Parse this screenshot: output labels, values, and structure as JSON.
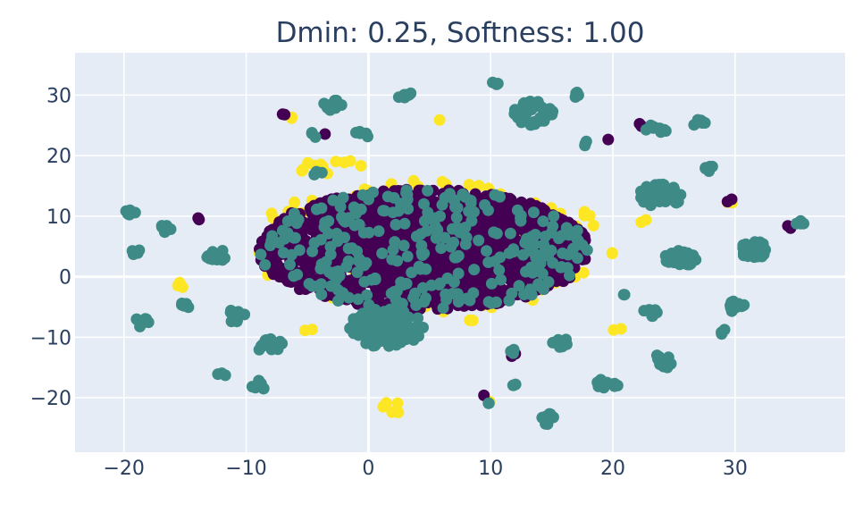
{
  "chart_data": {
    "type": "scatter",
    "title": "Dmin: 0.25, Softness: 1.00",
    "xlabel": "",
    "ylabel": "",
    "xlim": [
      -24,
      39
    ],
    "ylim": [
      -29,
      37
    ],
    "xticks": [
      -20,
      -10,
      0,
      10,
      20,
      30
    ],
    "yticks": [
      -20,
      -10,
      0,
      10,
      20,
      30
    ],
    "xtick_labels": [
      "−20",
      "−10",
      "0",
      "10",
      "20",
      "30"
    ],
    "ytick_labels": [
      "−20",
      "−10",
      "0",
      "10",
      "20",
      "30"
    ],
    "grid": true,
    "legend": "none",
    "background": "#e5ecf6",
    "colors": {
      "class_a": "#fde725",
      "class_b": "#440154",
      "class_c": "#3e8a87"
    },
    "series": [
      {
        "color": "#fde725",
        "blobs": [
          {
            "cx": 5,
            "cy": 5,
            "rx": 15,
            "ry": 11,
            "n": 140
          },
          {
            "cx": -3,
            "cy": 18,
            "rx": 2.6,
            "ry": 1.6,
            "n": 12
          },
          {
            "cx": 2,
            "cy": -21.5,
            "rx": 1.2,
            "ry": 1.0,
            "n": 5
          },
          {
            "cx": -15.5,
            "cy": -1.5,
            "rx": 0.6,
            "ry": 0.6,
            "n": 3
          },
          {
            "cx": 20.5,
            "cy": -9,
            "rx": 0.5,
            "ry": 0.5,
            "n": 2
          },
          {
            "cx": 8.5,
            "cy": -7,
            "rx": 0.5,
            "ry": 0.6,
            "n": 2
          },
          {
            "cx": 22.5,
            "cy": 9,
            "rx": 0.6,
            "ry": 0.6,
            "n": 2
          },
          {
            "cx": 29.5,
            "cy": 12.5,
            "rx": 0.5,
            "ry": 0.5,
            "n": 2
          },
          {
            "cx": -6.5,
            "cy": 26.5,
            "rx": 0.6,
            "ry": 0.4,
            "n": 2
          },
          {
            "cx": 10,
            "cy": -21,
            "rx": 0.4,
            "ry": 0.4,
            "n": 2
          },
          {
            "cx": 6,
            "cy": 26,
            "rx": 0.4,
            "ry": 0.4,
            "n": 1
          },
          {
            "cx": -5,
            "cy": -9,
            "rx": 0.5,
            "ry": 0.5,
            "n": 2
          },
          {
            "cx": 20,
            "cy": 4,
            "rx": 0.6,
            "ry": 0.6,
            "n": 2
          }
        ]
      },
      {
        "color": "#440154",
        "blobs": [
          {
            "cx": 4.5,
            "cy": 4.5,
            "rx": 13.5,
            "ry": 10,
            "n": 1300
          },
          {
            "cx": 4,
            "cy": 5,
            "rx": 8,
            "ry": 6,
            "n": 350
          },
          {
            "cx": -7,
            "cy": 26.5,
            "rx": 0.4,
            "ry": 0.4,
            "n": 2
          },
          {
            "cx": 22.5,
            "cy": 25,
            "rx": 0.7,
            "ry": 0.5,
            "n": 3
          },
          {
            "cx": 29.5,
            "cy": 12.5,
            "rx": 0.4,
            "ry": 0.4,
            "n": 2
          },
          {
            "cx": 34.5,
            "cy": 8.5,
            "rx": 0.5,
            "ry": 0.5,
            "n": 2
          },
          {
            "cx": 9.5,
            "cy": -19.5,
            "rx": 0.3,
            "ry": 0.3,
            "n": 1
          },
          {
            "cx": 19.5,
            "cy": 22.5,
            "rx": 0.3,
            "ry": 0.3,
            "n": 1
          },
          {
            "cx": -14,
            "cy": 9.5,
            "rx": 0.4,
            "ry": 0.3,
            "n": 2
          },
          {
            "cx": 12,
            "cy": -13,
            "rx": 0.4,
            "ry": 0.4,
            "n": 2
          },
          {
            "cx": -3.5,
            "cy": 23.5,
            "rx": 0.3,
            "ry": 0.3,
            "n": 1
          }
        ]
      },
      {
        "color": "#3e8a87",
        "blobs": [
          {
            "cx": 1.5,
            "cy": -8.5,
            "rx": 3.2,
            "ry": 3.2,
            "n": 110
          },
          {
            "cx": 4.5,
            "cy": 4.5,
            "rx": 13.5,
            "ry": 10,
            "n": 280
          },
          {
            "cx": 13.5,
            "cy": 27,
            "rx": 1.6,
            "ry": 2.0,
            "n": 40
          },
          {
            "cx": 24,
            "cy": 13.5,
            "rx": 1.8,
            "ry": 2.0,
            "n": 40
          },
          {
            "cx": 31.5,
            "cy": 4.5,
            "rx": 1.3,
            "ry": 1.4,
            "n": 30
          },
          {
            "cx": 25.5,
            "cy": 3,
            "rx": 1.3,
            "ry": 1.3,
            "n": 30
          },
          {
            "cx": -3,
            "cy": 28.5,
            "rx": 0.8,
            "ry": 1.0,
            "n": 12
          },
          {
            "cx": 3,
            "cy": 30,
            "rx": 0.6,
            "ry": 0.8,
            "n": 8
          },
          {
            "cx": -11,
            "cy": -6.5,
            "rx": 0.9,
            "ry": 1.1,
            "n": 12
          },
          {
            "cx": -8,
            "cy": -11.5,
            "rx": 1.1,
            "ry": 1.2,
            "n": 14
          },
          {
            "cx": -12.5,
            "cy": 3.5,
            "rx": 0.9,
            "ry": 1.1,
            "n": 12
          },
          {
            "cx": 15.5,
            "cy": -11,
            "rx": 0.9,
            "ry": 1.1,
            "n": 12
          },
          {
            "cx": 24,
            "cy": -14,
            "rx": 0.9,
            "ry": 1.2,
            "n": 12
          },
          {
            "cx": 19.5,
            "cy": -18,
            "rx": 0.9,
            "ry": 1.2,
            "n": 12
          },
          {
            "cx": 14.5,
            "cy": -23.5,
            "rx": 0.7,
            "ry": 1.0,
            "n": 9
          },
          {
            "cx": -9,
            "cy": -18,
            "rx": 0.6,
            "ry": 0.9,
            "n": 8
          },
          {
            "cx": 30,
            "cy": -5,
            "rx": 0.8,
            "ry": 1.0,
            "n": 10
          },
          {
            "cx": 23,
            "cy": -6,
            "rx": 0.7,
            "ry": 0.8,
            "n": 9
          },
          {
            "cx": -18.5,
            "cy": -7.5,
            "rx": 0.6,
            "ry": 0.9,
            "n": 8
          },
          {
            "cx": -19.5,
            "cy": 10.5,
            "rx": 0.5,
            "ry": 0.7,
            "n": 6
          },
          {
            "cx": -16.5,
            "cy": 8,
            "rx": 0.5,
            "ry": 0.7,
            "n": 6
          },
          {
            "cx": -19,
            "cy": 4,
            "rx": 0.4,
            "ry": 0.5,
            "n": 4
          },
          {
            "cx": -15,
            "cy": -5,
            "rx": 0.5,
            "ry": 0.7,
            "n": 5
          },
          {
            "cx": 23.5,
            "cy": 24.5,
            "rx": 1.0,
            "ry": 0.8,
            "n": 9
          },
          {
            "cx": 27,
            "cy": 25.5,
            "rx": 0.6,
            "ry": 0.7,
            "n": 6
          },
          {
            "cx": 28,
            "cy": 18,
            "rx": 0.5,
            "ry": 0.6,
            "n": 5
          },
          {
            "cx": 17,
            "cy": 30,
            "rx": 0.4,
            "ry": 0.5,
            "n": 4
          },
          {
            "cx": 10.5,
            "cy": 32,
            "rx": 0.4,
            "ry": 0.5,
            "n": 3
          },
          {
            "cx": -0.5,
            "cy": 23.5,
            "rx": 0.6,
            "ry": 0.6,
            "n": 5
          },
          {
            "cx": 12,
            "cy": -18,
            "rx": 0.4,
            "ry": 0.5,
            "n": 3
          },
          {
            "cx": 12,
            "cy": -12.5,
            "rx": 0.4,
            "ry": 0.5,
            "n": 3
          },
          {
            "cx": 18,
            "cy": 22,
            "rx": 0.5,
            "ry": 0.5,
            "n": 3
          },
          {
            "cx": 35,
            "cy": 9,
            "rx": 0.7,
            "ry": 0.5,
            "n": 5
          },
          {
            "cx": 29,
            "cy": -9,
            "rx": 0.4,
            "ry": 0.5,
            "n": 3
          },
          {
            "cx": -12,
            "cy": -16,
            "rx": 0.4,
            "ry": 0.5,
            "n": 3
          },
          {
            "cx": -4,
            "cy": 17,
            "rx": 0.5,
            "ry": 0.5,
            "n": 3
          },
          {
            "cx": -4.5,
            "cy": 23.5,
            "rx": 0.5,
            "ry": 0.5,
            "n": 3
          },
          {
            "cx": 10,
            "cy": -21,
            "rx": 0.3,
            "ry": 0.3,
            "n": 2
          },
          {
            "cx": 21,
            "cy": -3,
            "rx": 0.4,
            "ry": 0.4,
            "n": 2
          }
        ]
      }
    ]
  }
}
